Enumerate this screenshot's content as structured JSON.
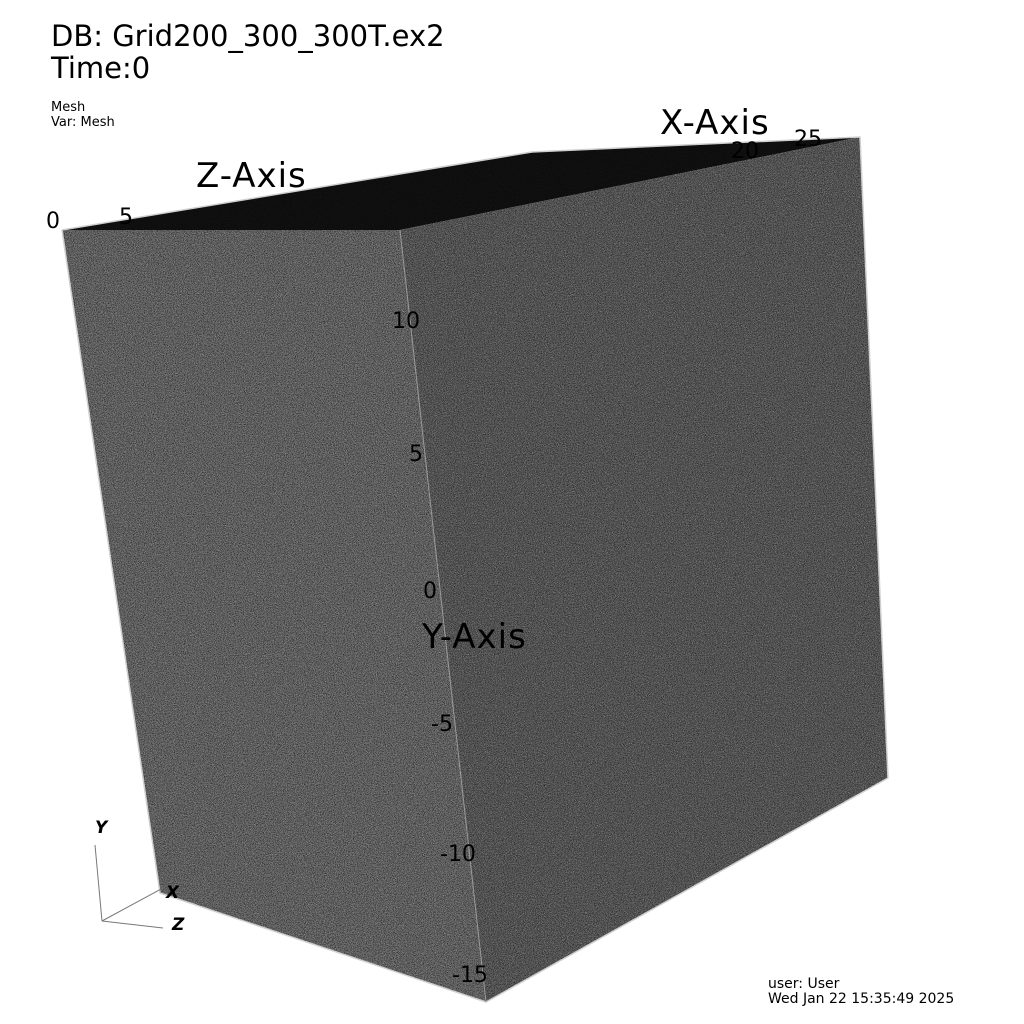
{
  "header": {
    "db_title": "DB: Grid200_300_300T.ex2",
    "time_label": "Time:0"
  },
  "legend": {
    "plot_name": "Mesh",
    "variable": "Var: Mesh"
  },
  "footer": {
    "user": "user: User",
    "date": "Wed Jan 22 15:35:49 2025"
  },
  "axes": {
    "x_title": "X-Axis",
    "y_title": "Y-Axis",
    "z_title": "Z-Axis",
    "x_ticks": [
      "20",
      "25"
    ],
    "y_ticks": [
      "10",
      "5",
      "0",
      "-5",
      "-10",
      "-15"
    ],
    "z_ticks": [
      "0",
      "5"
    ]
  },
  "triad": {
    "x": "X",
    "y": "Y",
    "z": "Z"
  },
  "colors": {
    "background": "#ffffff",
    "mesh_top": "#0d0d0d",
    "mesh_left": "#6b6b6b",
    "mesh_right": "#5a5a5a",
    "text": "#000000"
  }
}
